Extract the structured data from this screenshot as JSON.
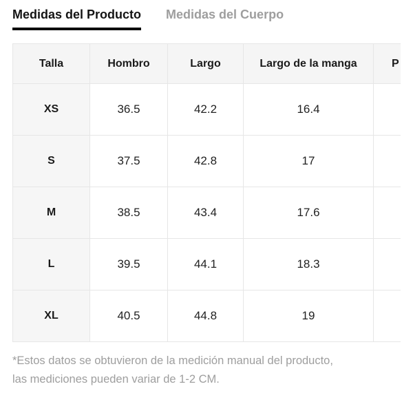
{
  "tabs": [
    {
      "label": "Medidas del Producto",
      "active": true
    },
    {
      "label": "Medidas del Cuerpo",
      "active": false
    }
  ],
  "table": {
    "columns": [
      "Talla",
      "Hombro",
      "Largo",
      "Largo de la manga",
      "P"
    ],
    "rows": [
      {
        "talla": "XS",
        "values": [
          "36.5",
          "42.2",
          "16.4",
          ""
        ]
      },
      {
        "talla": "S",
        "values": [
          "37.5",
          "42.8",
          "17",
          ""
        ]
      },
      {
        "talla": "M",
        "values": [
          "38.5",
          "43.4",
          "17.6",
          ""
        ]
      },
      {
        "talla": "L",
        "values": [
          "39.5",
          "44.1",
          "18.3",
          ""
        ]
      },
      {
        "talla": "XL",
        "values": [
          "40.5",
          "44.8",
          "19",
          ""
        ]
      }
    ]
  },
  "footnote": {
    "line1": "*Estos datos se obtuvieron de la medición manual del producto,",
    "line2": "las mediciones pueden variar de 1-2 CM."
  },
  "colors": {
    "active_tab_text": "#141414",
    "inactive_tab_text": "#9e9e9e",
    "tab_underline": "#0d0d0d",
    "header_bg": "#f5f5f5",
    "row_label_bg": "#f6f6f6",
    "border": "#e6e6e6",
    "body_text": "#222222",
    "footnote_text": "#9e9e9e"
  }
}
